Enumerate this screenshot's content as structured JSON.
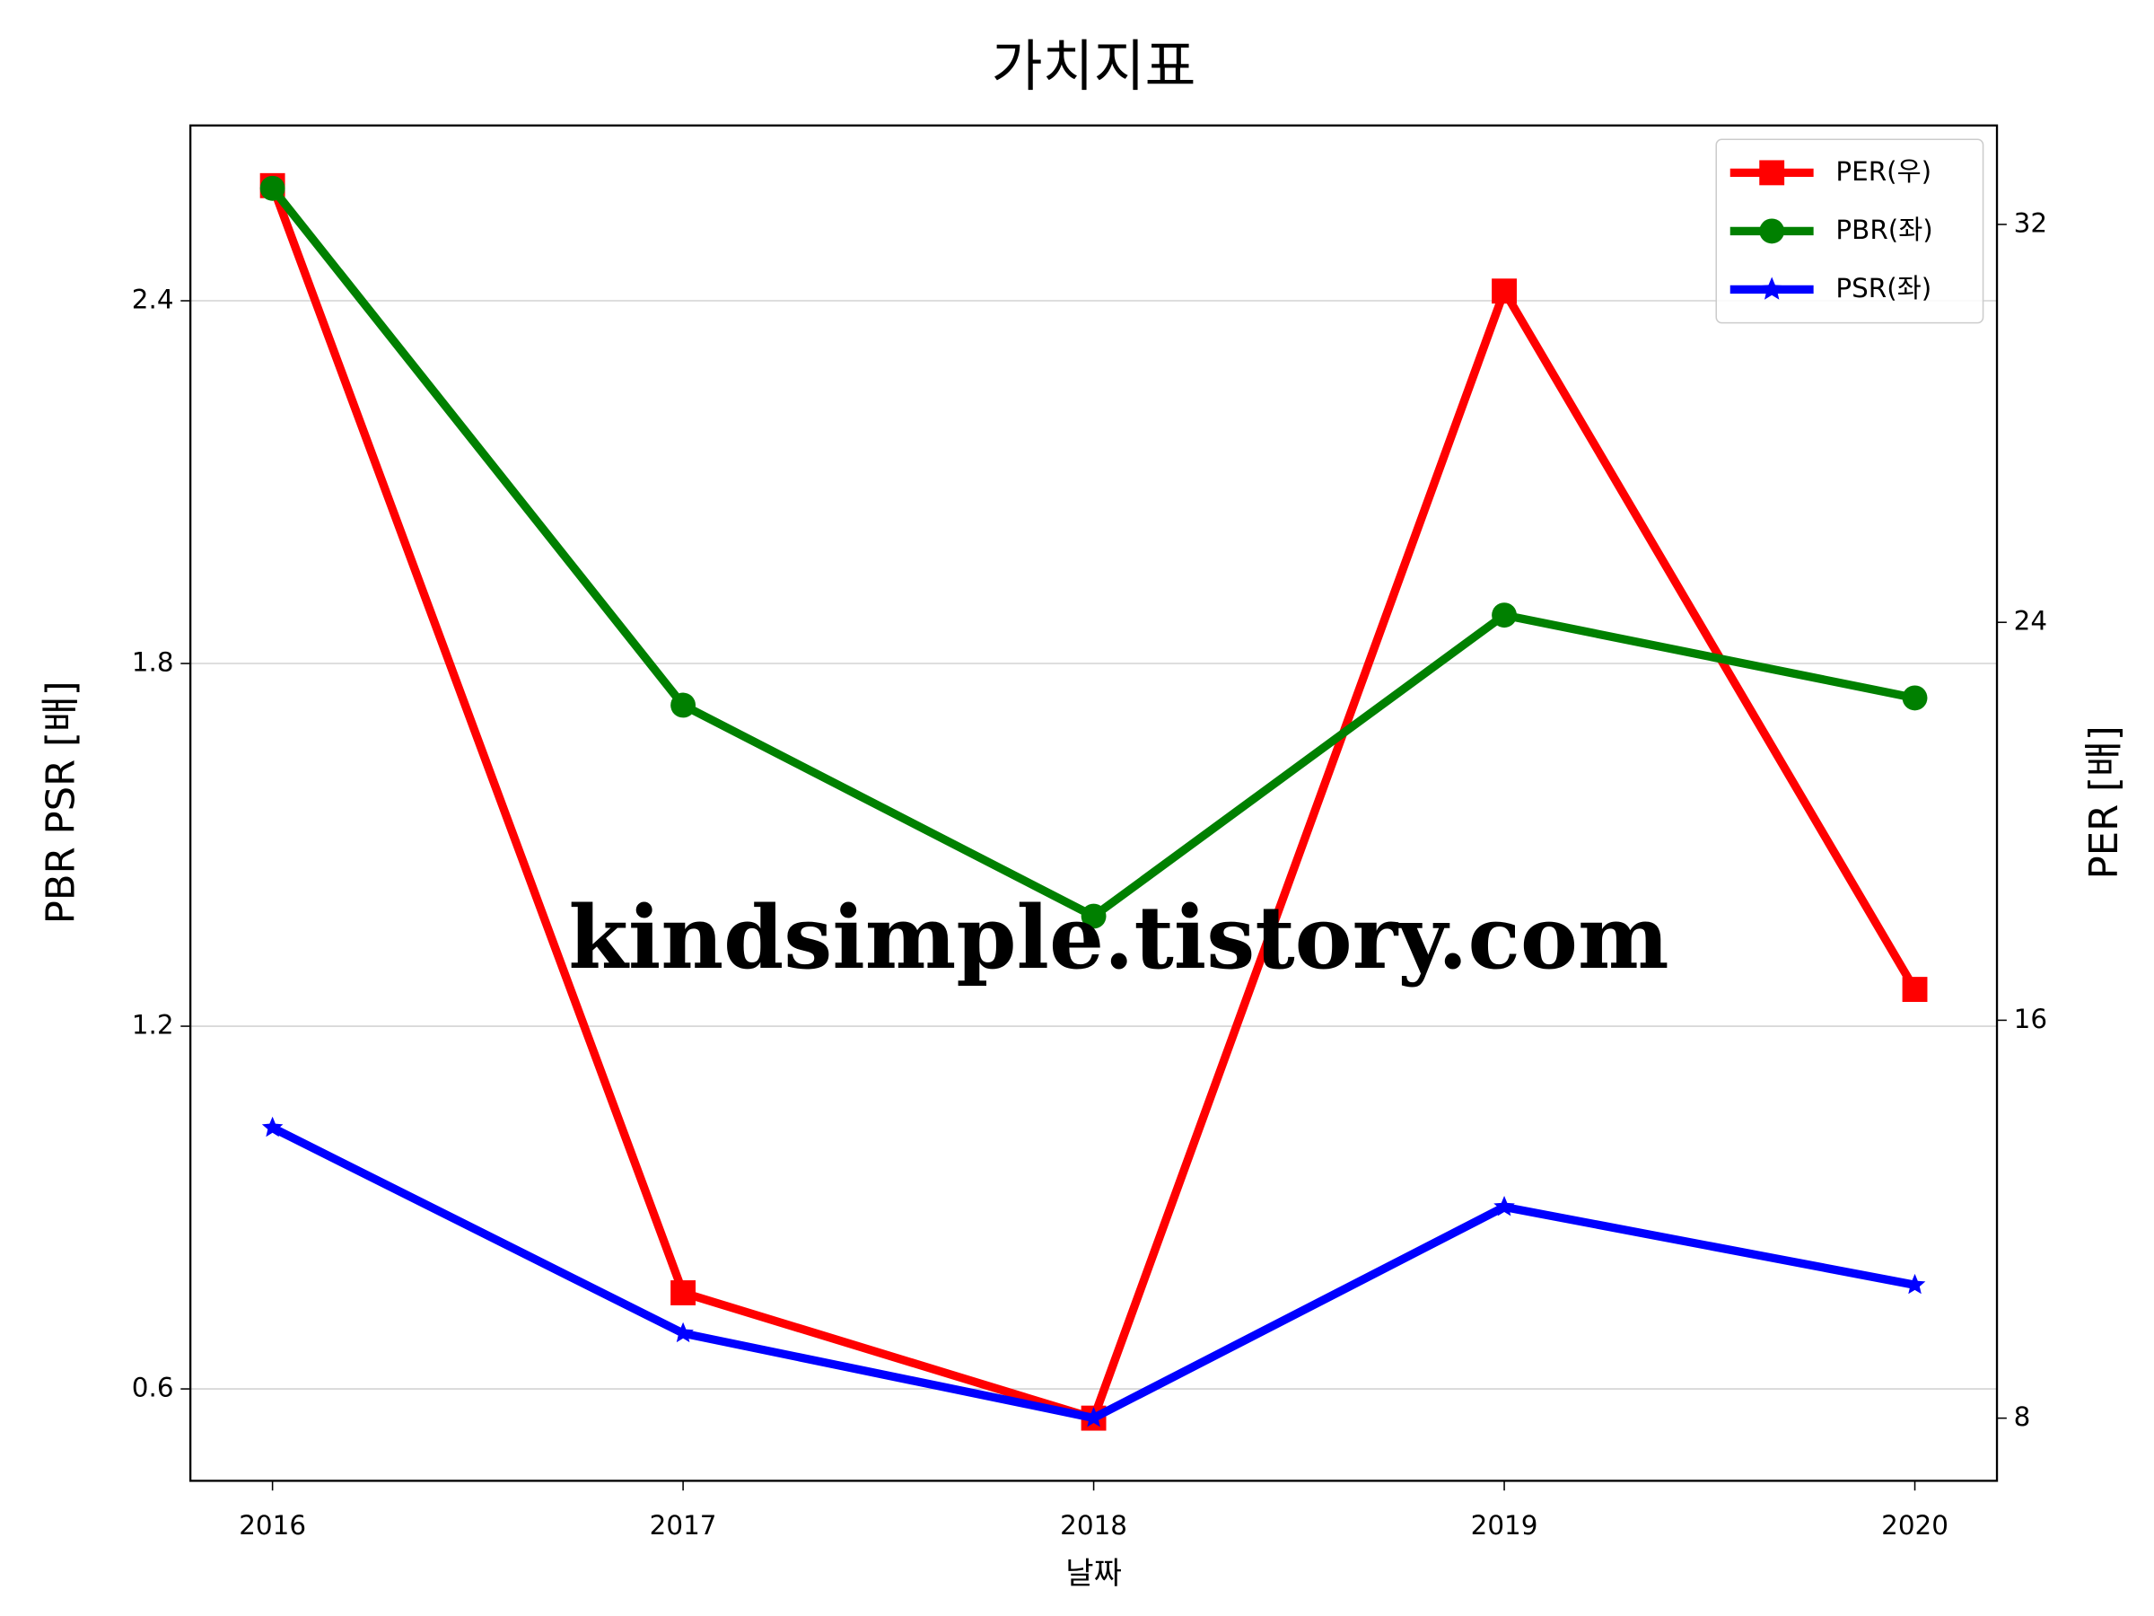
{
  "chart_data": {
    "type": "line",
    "title": "가치지표",
    "x_label": "날짜",
    "y_label": "PBR PSR [배]",
    "y_label_color": "#008000",
    "y2_label": "PER [배]",
    "y2_label_color": "#ff0000",
    "x": [
      2016,
      2017,
      2018,
      2019,
      2020
    ],
    "xlim": [
      2015.8,
      2020.2
    ],
    "xticks": [
      2016,
      2017,
      2018,
      2019,
      2020
    ],
    "ylim": [
      0.448,
      2.69
    ],
    "yticks": [
      0.6,
      1.2,
      1.8,
      2.4
    ],
    "y2lim": [
      6.74,
      33.99
    ],
    "y2ticks": [
      8,
      16,
      24,
      32
    ],
    "grid": true,
    "legend": "upper right",
    "annotation": "kindsimple.tistory.com",
    "series": [
      {
        "name": "PER(우)",
        "color": "#ff0000",
        "marker": "square",
        "axis": "y2",
        "values": [
          32.78,
          10.52,
          8.0,
          30.66,
          16.62
        ]
      },
      {
        "name": "PBR(좌)",
        "color": "#008000",
        "marker": "circle",
        "values": [
          2.586,
          1.731,
          1.382,
          1.88,
          1.743
        ]
      },
      {
        "name": "PSR(좌)",
        "color": "#0000ff",
        "marker": "star",
        "values": [
          1.032,
          0.692,
          0.552,
          0.901,
          0.772
        ]
      }
    ]
  }
}
